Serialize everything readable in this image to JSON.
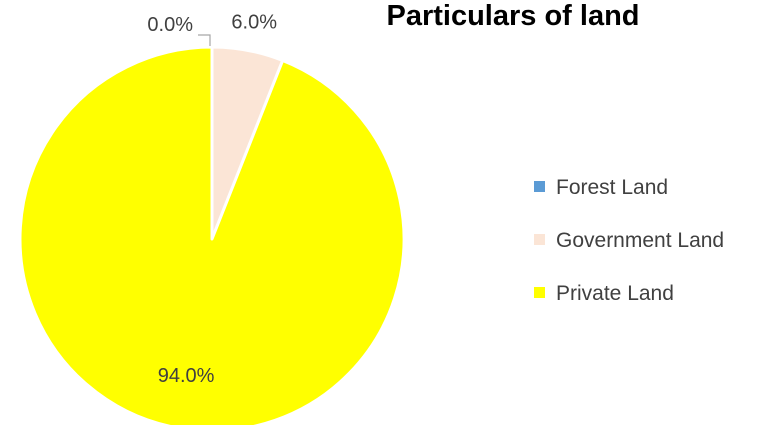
{
  "chart_data": {
    "type": "pie",
    "title": "Particulars of land",
    "legend_position": "right",
    "slices": [
      {
        "label": "Forest Land",
        "value": 0.0,
        "display": "0.0%",
        "color": "#5B9BD5"
      },
      {
        "label": "Government Land",
        "value": 6.0,
        "display": "6.0%",
        "color": "#FBE5D6"
      },
      {
        "label": "Private Land",
        "value": 94.0,
        "display": "94.0%",
        "color": "#FFFF00"
      }
    ]
  }
}
